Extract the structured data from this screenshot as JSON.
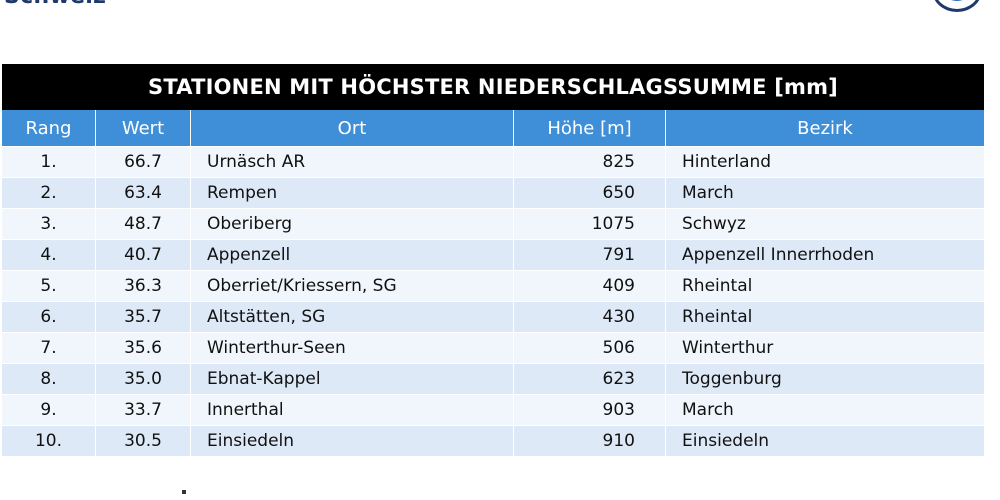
{
  "header": {
    "top_label": "Schweiz"
  },
  "table": {
    "title": "STATIONEN MIT HÖCHSTER NIEDERSCHLAGSSUMME [mm]",
    "columns": [
      "Rang",
      "Wert",
      "Ort",
      "Höhe [m]",
      "Bezirk"
    ],
    "rows": [
      [
        "1.",
        "66.7",
        "Urnäsch AR",
        "825",
        "Hinterland"
      ],
      [
        "2.",
        "63.4",
        "Rempen",
        "650",
        "March"
      ],
      [
        "3.",
        "48.7",
        "Oberiberg",
        "1075",
        "Schwyz"
      ],
      [
        "4.",
        "40.7",
        "Appenzell",
        "791",
        "Appenzell Innerrhoden"
      ],
      [
        "5.",
        "36.3",
        "Oberriet/Kriessern, SG",
        "409",
        "Rheintal"
      ],
      [
        "6.",
        "35.7",
        "Altstätten, SG",
        "430",
        "Rheintal"
      ],
      [
        "7.",
        "35.6",
        "Winterthur-Seen",
        "506",
        "Winterthur"
      ],
      [
        "8.",
        "35.0",
        "Ebnat-Kappel",
        "623",
        "Toggenburg"
      ],
      [
        "9.",
        "33.7",
        "Innerthal",
        "903",
        "March"
      ],
      [
        "10.",
        "30.5",
        "Einsiedeln",
        "910",
        "Einsiedeln"
      ]
    ]
  },
  "colors": {
    "title_bg": "#000000",
    "header_bg": "#3e8fd7",
    "row_light": "#f1f6fc",
    "row_dark": "#dde9f7"
  }
}
